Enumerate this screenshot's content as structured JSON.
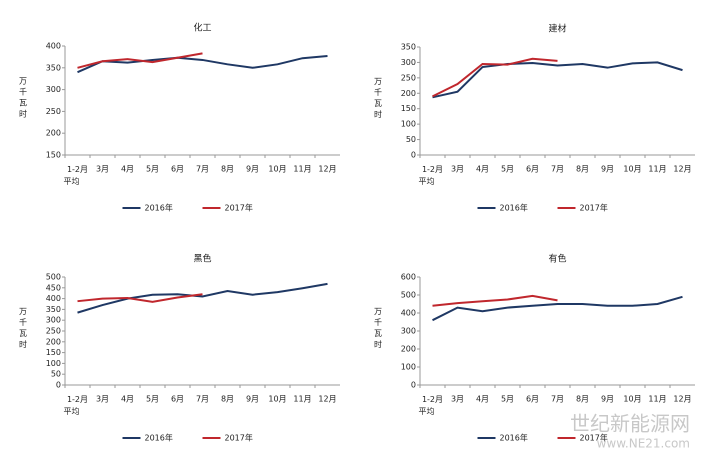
{
  "chart_data": [
    {
      "type": "line",
      "title": "化工",
      "y_label": "万千瓦时",
      "categories": [
        "1-2月平均",
        "3月",
        "4月",
        "5月",
        "6月",
        "7月",
        "8月",
        "9月",
        "10月",
        "11月",
        "12月"
      ],
      "series": [
        {
          "name": "2016年",
          "color": "#1f3864",
          "values": [
            340,
            365,
            362,
            368,
            373,
            368,
            358,
            350,
            358,
            372,
            377
          ]
        },
        {
          "name": "2017年",
          "color": "#c0272d",
          "values": [
            350,
            365,
            370,
            363,
            373,
            383,
            null,
            null,
            null,
            null,
            null
          ]
        }
      ],
      "ylim": [
        150,
        400
      ],
      "yticks": [
        150,
        200,
        250,
        300,
        350,
        400
      ]
    },
    {
      "type": "line",
      "title": "建材",
      "y_label": "万千瓦时",
      "categories": [
        "1-2月平均",
        "3月",
        "4月",
        "5月",
        "6月",
        "7月",
        "8月",
        "9月",
        "10月",
        "11月",
        "12月"
      ],
      "series": [
        {
          "name": "2016年",
          "color": "#1f3864",
          "values": [
            187,
            205,
            285,
            295,
            298,
            290,
            295,
            283,
            297,
            300,
            275
          ]
        },
        {
          "name": "2017年",
          "color": "#c0272d",
          "values": [
            190,
            230,
            295,
            293,
            312,
            305,
            null,
            null,
            null,
            null,
            null
          ]
        }
      ],
      "ylim": [
        0,
        350
      ],
      "yticks": [
        0,
        50,
        100,
        150,
        200,
        250,
        300,
        350
      ]
    },
    {
      "type": "line",
      "title": "黑色",
      "y_label": "万千瓦时",
      "categories": [
        "1-2月平均",
        "3月",
        "4月",
        "5月",
        "6月",
        "7月",
        "8月",
        "9月",
        "10月",
        "11月",
        "12月"
      ],
      "series": [
        {
          "name": "2016年",
          "color": "#1f3864",
          "values": [
            335,
            370,
            400,
            418,
            420,
            410,
            435,
            418,
            430,
            448,
            468
          ]
        },
        {
          "name": "2017年",
          "color": "#c0272d",
          "values": [
            388,
            400,
            403,
            385,
            405,
            420,
            null,
            null,
            null,
            null,
            null
          ]
        }
      ],
      "ylim": [
        0,
        500
      ],
      "yticks": [
        0,
        50,
        100,
        150,
        200,
        250,
        300,
        350,
        400,
        450,
        500
      ]
    },
    {
      "type": "line",
      "title": "有色",
      "y_label": "万千瓦时",
      "categories": [
        "1-2月平均",
        "3月",
        "4月",
        "5月",
        "6月",
        "7月",
        "8月",
        "9月",
        "10月",
        "11月",
        "12月"
      ],
      "series": [
        {
          "name": "2016年",
          "color": "#1f3864",
          "values": [
            360,
            430,
            410,
            430,
            440,
            450,
            450,
            440,
            440,
            450,
            490
          ]
        },
        {
          "name": "2017年",
          "color": "#c0272d",
          "values": [
            440,
            455,
            465,
            475,
            495,
            470,
            null,
            null,
            null,
            null,
            null
          ]
        }
      ],
      "ylim": [
        0,
        600
      ],
      "yticks": [
        0,
        100,
        200,
        300,
        400,
        500,
        600
      ]
    }
  ],
  "watermark": [
    "世纪新能源网",
    "www.NE21.com"
  ]
}
